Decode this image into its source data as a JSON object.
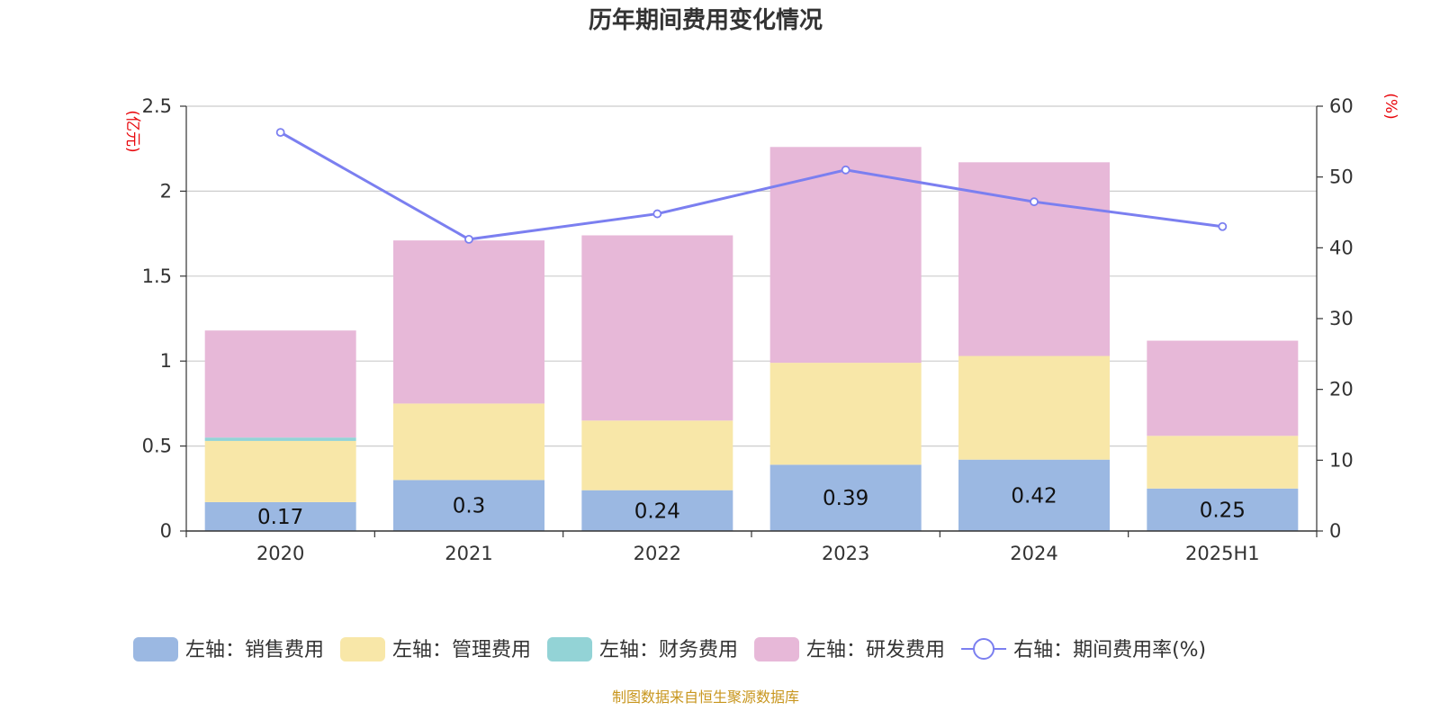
{
  "chart_data": {
    "type": "bar",
    "title": "历年期间费用变化情况",
    "categories": [
      "2020",
      "2021",
      "2022",
      "2023",
      "2024",
      "2025H1"
    ],
    "y_left": {
      "unit": "(亿元)",
      "range": [
        0,
        2.5
      ],
      "ticks": [
        "0",
        "0.5",
        "1",
        "1.5",
        "2",
        "2.5"
      ]
    },
    "y_right": {
      "unit": "(%)",
      "range": [
        0,
        60
      ],
      "ticks": [
        "0",
        "10",
        "20",
        "30",
        "40",
        "50",
        "60"
      ]
    },
    "series": [
      {
        "name": "左轴：销售费用",
        "kind": "bar",
        "axis": "left",
        "color": "#9bb8e2",
        "values": [
          0.17,
          0.3,
          0.24,
          0.39,
          0.42,
          0.25
        ],
        "labels": [
          "0.17",
          "0.3",
          "0.24",
          "0.39",
          "0.42",
          "0.25"
        ]
      },
      {
        "name": "左轴：管理费用",
        "kind": "bar",
        "axis": "left",
        "color": "#f8e7a8",
        "values": [
          0.36,
          0.45,
          0.41,
          0.6,
          0.61,
          0.31
        ]
      },
      {
        "name": "左轴：财务费用",
        "kind": "bar",
        "axis": "left",
        "color": "#93d3d6",
        "values": [
          0.02,
          0.0,
          0.0,
          0.0,
          0.0,
          0.0
        ]
      },
      {
        "name": "左轴：研发费用",
        "kind": "bar",
        "axis": "left",
        "color": "#e7b8d8",
        "values": [
          0.63,
          0.96,
          1.09,
          1.27,
          1.14,
          0.56
        ]
      },
      {
        "name": "右轴：期间费用率(%)",
        "kind": "line",
        "axis": "right",
        "color": "#7b7ff0",
        "values": [
          56.3,
          41.2,
          44.8,
          51.0,
          46.5,
          43.0
        ]
      }
    ],
    "legend_position": "bottom",
    "grid": true
  },
  "source_note": "制图数据来自恒生聚源数据库"
}
